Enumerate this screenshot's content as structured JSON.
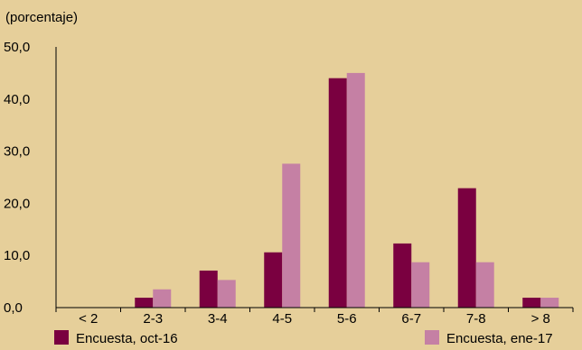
{
  "chart_data": {
    "type": "bar",
    "title": "",
    "ylabel": "(porcentaje)",
    "xlabel": "",
    "categories": [
      "< 2",
      "2-3",
      "3-4",
      "4-5",
      "5-6",
      "6-7",
      "7-8",
      "> 8"
    ],
    "series": [
      {
        "name": "Encuesta, oct-16",
        "color": "#7a0040",
        "values": [
          0.0,
          1.9,
          7.1,
          10.6,
          44.0,
          12.3,
          22.9,
          1.9
        ]
      },
      {
        "name": "Encuesta, ene-17",
        "color": "#c580a4",
        "values": [
          0.0,
          3.5,
          5.3,
          27.6,
          45.0,
          8.7,
          8.7,
          1.9
        ]
      }
    ],
    "ylim": [
      0,
      50
    ],
    "yticks": [
      "0,0",
      "10,0",
      "20,0",
      "30,0",
      "40,0",
      "50,0"
    ],
    "grid": false,
    "legend_position": "bottom"
  }
}
